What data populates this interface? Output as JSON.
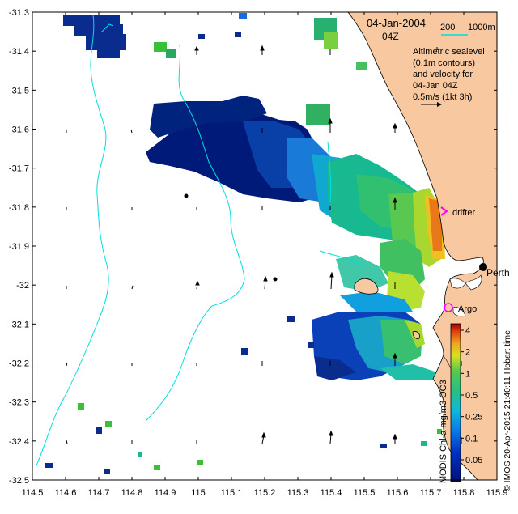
{
  "header": {
    "date": "04-Jan-2004",
    "time": "04Z",
    "scale_label_200": "200",
    "scale_label_1000m": "1000m",
    "description_lines": [
      "Altimetric sealevel",
      "(0.1m contours)",
      "and velocity for",
      "04-Jan 04Z",
      "0.5m/s (1kt 3h)"
    ]
  },
  "markers": {
    "drifter_label": "drifter",
    "argo_label": "Argo",
    "city_label": "Perth"
  },
  "colorbar": {
    "title": "MODIS Chl-a mg/m3 OC3",
    "tick_labels": [
      "4",
      "2",
      "1",
      "0.5",
      "0.25",
      "0.1",
      "0.05"
    ],
    "credit": "© IMOS 20-Apr-2015 21:40:11 Hobart time"
  },
  "axes": {
    "x_ticks": [
      "114.5",
      "114.6",
      "114.7",
      "114.8",
      "114.9",
      "115",
      "115.1",
      "115.2",
      "115.3",
      "115.4",
      "115.5",
      "115.6",
      "115.7",
      "115.8",
      "115.9"
    ],
    "y_ticks": [
      "-31.3",
      "-31.4",
      "-31.5",
      "-31.6",
      "-31.7",
      "-31.8",
      "-31.9",
      "-32",
      "-32.1",
      "-32.2",
      "-32.3",
      "-32.4",
      "-32.5"
    ]
  },
  "map_data": {
    "lon_range": [
      114.5,
      115.9
    ],
    "lat_range": [
      -32.5,
      -31.3
    ],
    "colors": {
      "land": "#f8c8a0",
      "isobath": "#00dde0",
      "border": "#000000"
    }
  }
}
